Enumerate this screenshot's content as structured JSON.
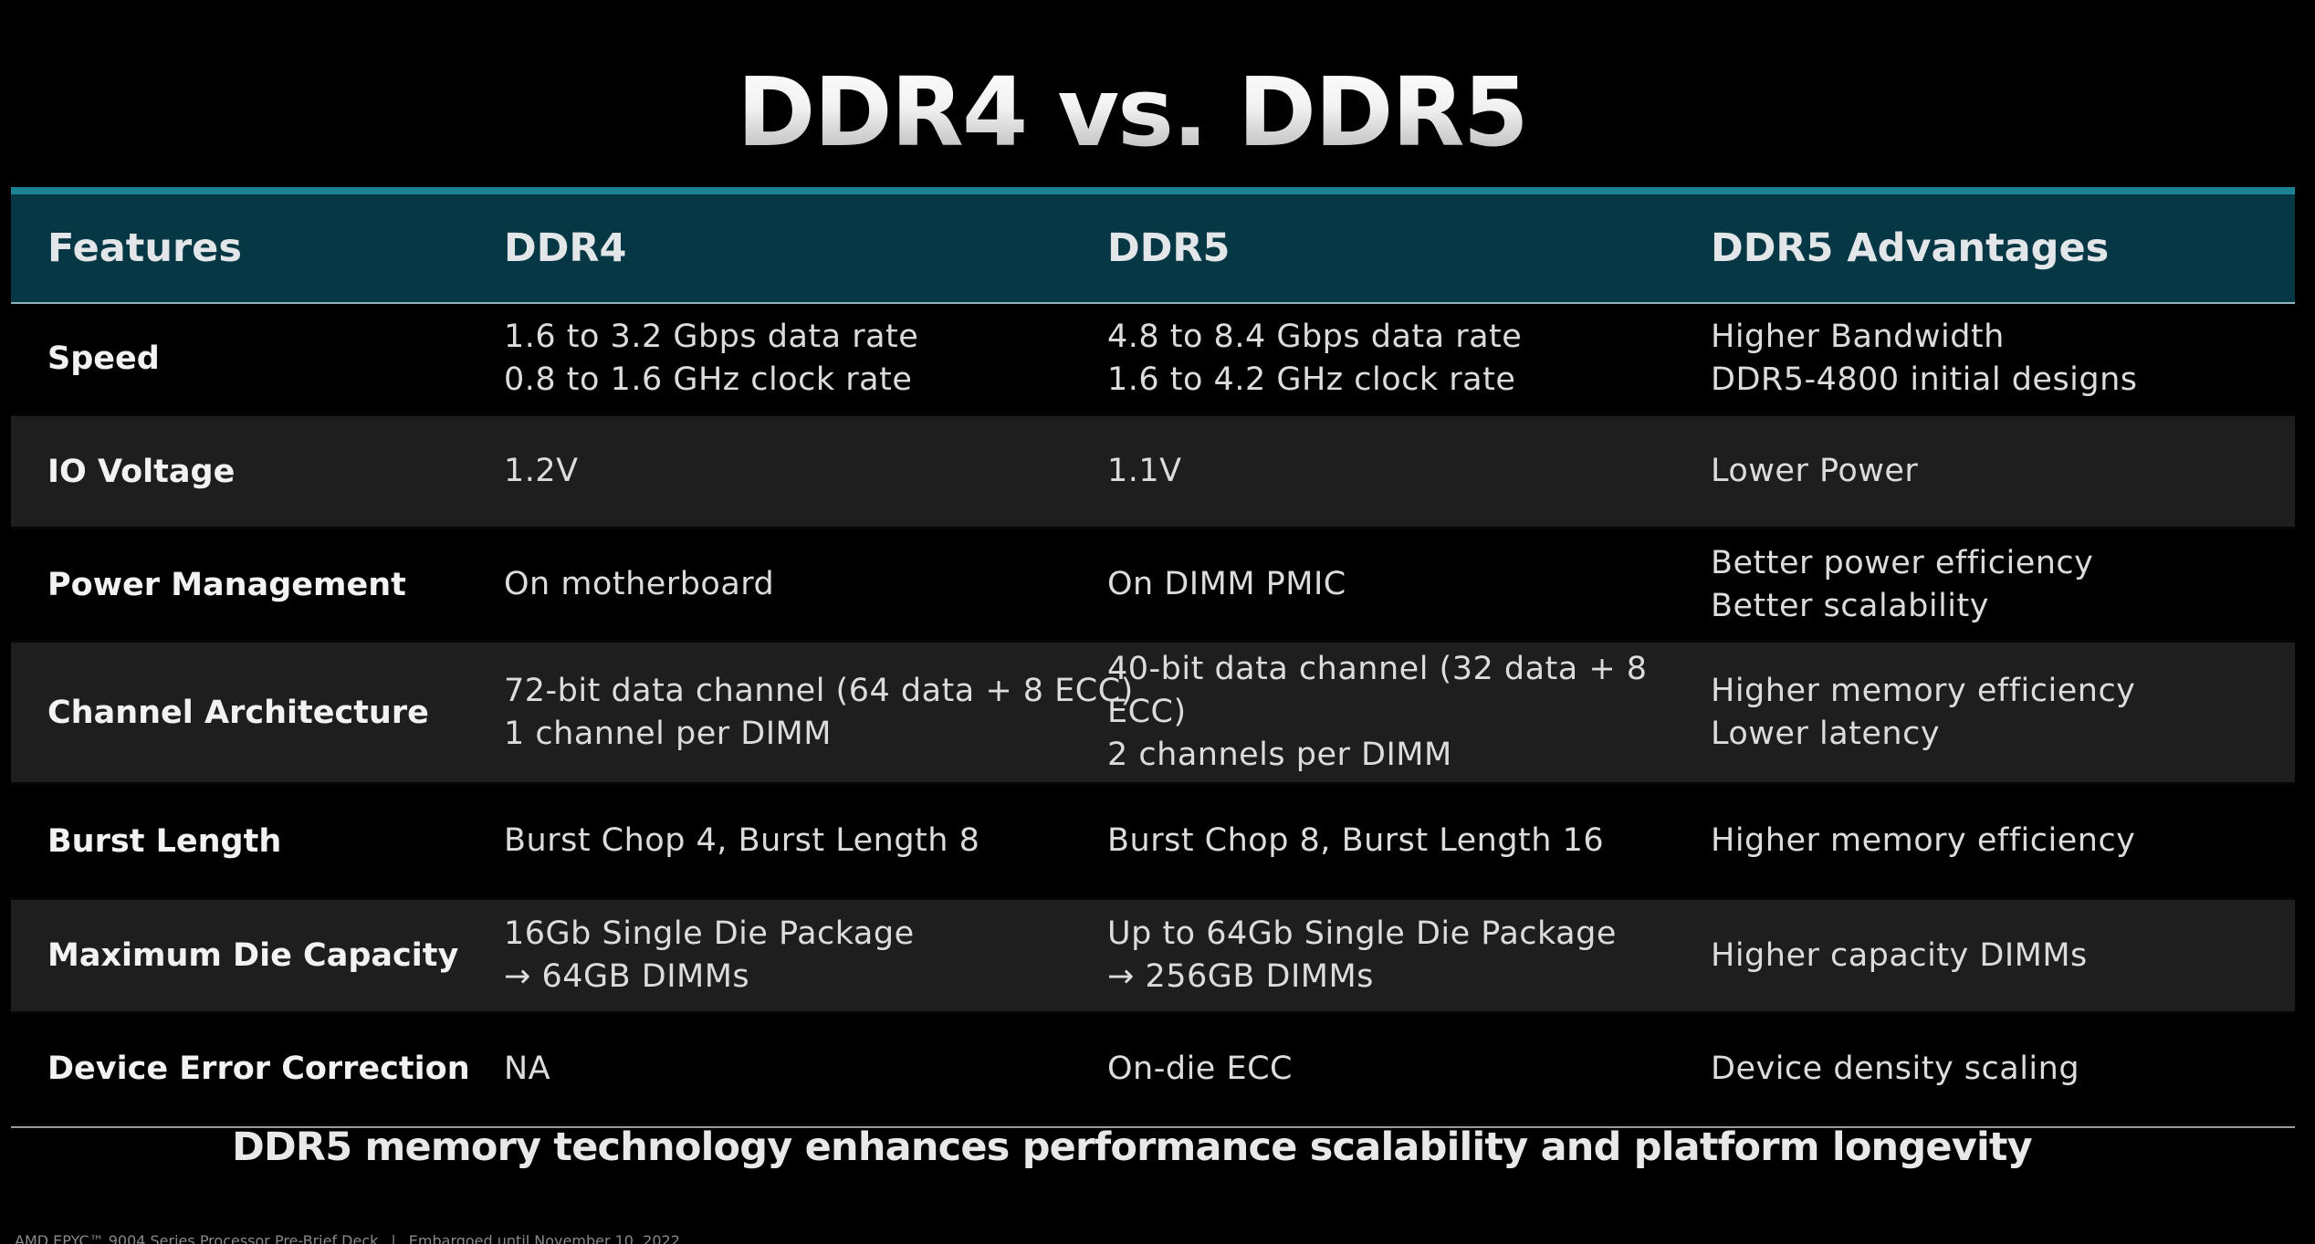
{
  "title": "DDR4 vs. DDR5",
  "table": {
    "headers": [
      "Features",
      "DDR4",
      "DDR5",
      "DDR5 Advantages"
    ],
    "rows": [
      {
        "feature": "Speed",
        "ddr4": [
          "1.6 to 3.2 Gbps data rate",
          "0.8 to 1.6 GHz clock rate"
        ],
        "ddr5": [
          "4.8 to 8.4 Gbps data rate",
          "1.6 to 4.2 GHz clock rate"
        ],
        "advantages": [
          "Higher Bandwidth",
          "DDR5-4800 initial designs"
        ]
      },
      {
        "feature": "IO Voltage",
        "ddr4": [
          "1.2V"
        ],
        "ddr5": [
          "1.1V"
        ],
        "advantages": [
          "Lower Power"
        ]
      },
      {
        "feature": "Power Management",
        "ddr4": [
          "On motherboard"
        ],
        "ddr5": [
          "On DIMM PMIC"
        ],
        "advantages": [
          "Better power efficiency",
          "Better scalability"
        ]
      },
      {
        "feature": "Channel Architecture",
        "ddr4": [
          "72-bit data channel (64 data + 8 ECC)",
          "1 channel per DIMM"
        ],
        "ddr5": [
          "40-bit data channel (32 data + 8",
          "ECC)",
          "2 channels per DIMM"
        ],
        "advantages": [
          "Higher memory efficiency",
          "Lower latency"
        ]
      },
      {
        "feature": "Burst Length",
        "ddr4": [
          "Burst Chop 4, Burst Length 8"
        ],
        "ddr5": [
          "Burst Chop 8, Burst Length 16"
        ],
        "advantages": [
          "Higher memory efficiency"
        ]
      },
      {
        "feature": "Maximum Die Capacity",
        "ddr4": [
          "16Gb Single Die Package",
          "→ 64GB DIMMs"
        ],
        "ddr5": [
          "Up to 64Gb Single Die Package",
          "→ 256GB DIMMs"
        ],
        "advantages": [
          "Higher capacity DIMMs"
        ]
      },
      {
        "feature": "Device Error Correction",
        "ddr4": [
          "NA"
        ],
        "ddr5": [
          "On-die ECC"
        ],
        "advantages": [
          "Device density scaling"
        ]
      }
    ]
  },
  "tagline": "DDR5 memory technology enhances performance scalability and platform longevity",
  "footer": {
    "left": "AMD EPYC™ 9004 Series Processor Pre-Brief Deck",
    "separator": "|",
    "right": "Embargoed until November 10, 2022"
  },
  "colors": {
    "accent": "#1b8394",
    "header_bg": "#063744",
    "row_alt": "#1e1e1e",
    "background": "#000000"
  }
}
